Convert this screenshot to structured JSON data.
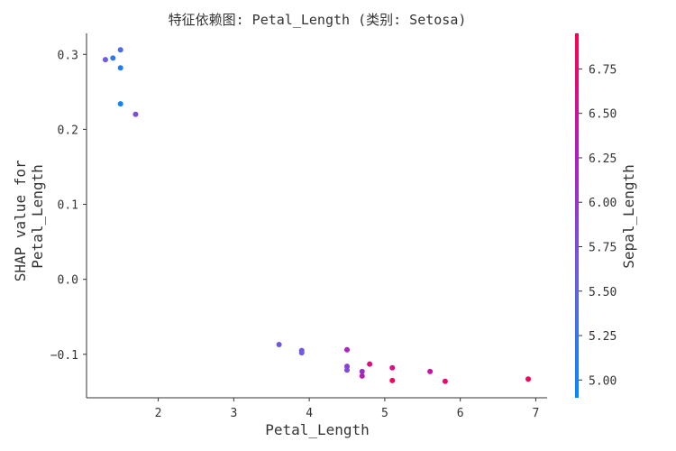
{
  "chart_data": {
    "type": "scatter",
    "title": "特征依赖图: Petal_Length (类别: Setosa)",
    "xlabel": "Petal_Length",
    "ylabel_lines": [
      "SHAP value for",
      "Petal_Length"
    ],
    "xlim": [
      1.05,
      7.15
    ],
    "ylim": [
      -0.158,
      0.328
    ],
    "xticks": [
      2,
      3,
      4,
      5,
      6,
      7
    ],
    "yticks": [
      0.3,
      0.2,
      0.1,
      0.0,
      -0.1
    ],
    "ytick_labels": [
      "0.3",
      "0.2",
      "0.1",
      "0.0",
      "−0.1"
    ],
    "colorbar": {
      "label": "Sepal_Length",
      "range": [
        4.9,
        6.95
      ],
      "ticks": [
        5.0,
        5.25,
        5.5,
        5.75,
        6.0,
        6.25,
        6.5,
        6.75
      ],
      "tick_labels": [
        "5.00",
        "5.25",
        "5.50",
        "5.75",
        "6.00",
        "6.25",
        "6.50",
        "6.75"
      ],
      "colormap": "blue-magenta-red",
      "colors": [
        "#008bfb",
        "#6b5ee0",
        "#b01ec0",
        "#ff0052"
      ]
    },
    "points": [
      {
        "x": 1.3,
        "y": 0.293,
        "c": 5.6
      },
      {
        "x": 1.4,
        "y": 0.295,
        "c": 5.2
      },
      {
        "x": 1.5,
        "y": 0.306,
        "c": 5.4
      },
      {
        "x": 1.5,
        "y": 0.282,
        "c": 5.1
      },
      {
        "x": 1.5,
        "y": 0.234,
        "c": 5.0
      },
      {
        "x": 1.7,
        "y": 0.22,
        "c": 5.75
      },
      {
        "x": 3.6,
        "y": -0.087,
        "c": 5.65
      },
      {
        "x": 3.9,
        "y": -0.095,
        "c": 5.7
      },
      {
        "x": 3.9,
        "y": -0.098,
        "c": 5.6
      },
      {
        "x": 4.5,
        "y": -0.094,
        "c": 6.2
      },
      {
        "x": 4.5,
        "y": -0.116,
        "c": 5.9
      },
      {
        "x": 4.5,
        "y": -0.121,
        "c": 5.8
      },
      {
        "x": 4.7,
        "y": -0.123,
        "c": 6.1
      },
      {
        "x": 4.7,
        "y": -0.129,
        "c": 6.3
      },
      {
        "x": 4.8,
        "y": -0.113,
        "c": 6.7
      },
      {
        "x": 5.1,
        "y": -0.118,
        "c": 6.6
      },
      {
        "x": 5.1,
        "y": -0.135,
        "c": 6.85
      },
      {
        "x": 5.6,
        "y": -0.123,
        "c": 6.45
      },
      {
        "x": 5.8,
        "y": -0.136,
        "c": 6.8
      },
      {
        "x": 6.9,
        "y": -0.133,
        "c": 6.9
      }
    ]
  }
}
